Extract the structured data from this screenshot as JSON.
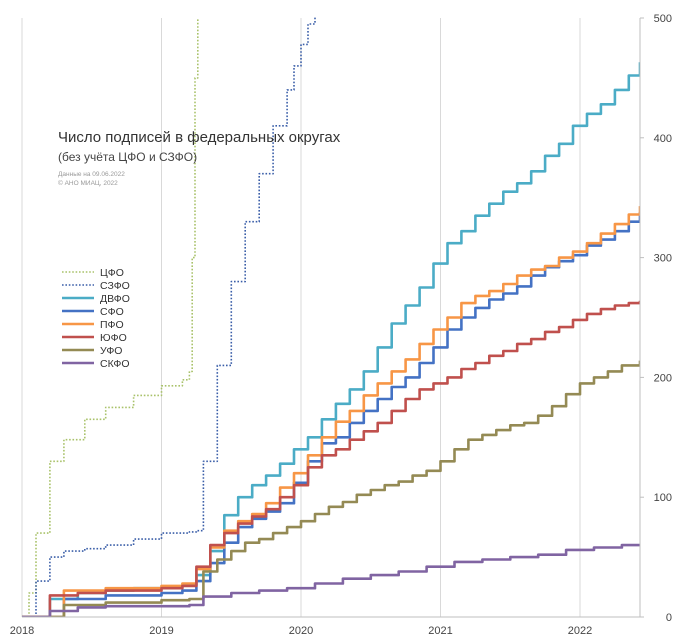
{
  "chart_data": {
    "type": "line",
    "title": "Число подписей в федеральных округах",
    "subtitle": "(без учёта ЦФО и СЗФО)",
    "notes": [
      "Данные на 09.06.2022",
      "© АНО МИАЦ, 2022"
    ],
    "xlabel": "",
    "ylabel": "",
    "xlim": [
      2018.0,
      2022.43
    ],
    "ylim": [
      0,
      500
    ],
    "x_ticks": [
      2018,
      2019,
      2020,
      2021,
      2022
    ],
    "x_tick_labels": [
      "2018",
      "2019",
      "2020",
      "2021",
      "2022"
    ],
    "y_ticks": [
      0,
      100,
      200,
      300,
      400,
      500
    ],
    "y_tick_labels": [
      "0",
      "100",
      "200",
      "300",
      "400",
      "500"
    ],
    "y_axis_side": "right",
    "grid": "vertical",
    "legend_position": "left",
    "series": [
      {
        "name": "ЦФО",
        "color": "#a9c26a",
        "style": "dotted",
        "x": [
          2018.0,
          2018.05,
          2018.1,
          2018.2,
          2018.3,
          2018.45,
          2018.6,
          2018.8,
          2019.0,
          2019.15,
          2019.2,
          2019.22,
          2019.24,
          2019.26
        ],
        "y": [
          0,
          20,
          70,
          130,
          148,
          165,
          175,
          185,
          193,
          198,
          205,
          300,
          450,
          500
        ]
      },
      {
        "name": "СЗФО",
        "color": "#3a5ea8",
        "style": "dotted",
        "x": [
          2018.0,
          2018.1,
          2018.2,
          2018.3,
          2018.45,
          2018.6,
          2018.8,
          2019.0,
          2019.1,
          2019.2,
          2019.25,
          2019.3,
          2019.4,
          2019.5,
          2019.6,
          2019.7,
          2019.8,
          2019.9,
          2019.95,
          2020.0,
          2020.05,
          2020.1
        ],
        "y": [
          0,
          30,
          50,
          55,
          57,
          60,
          65,
          70,
          70,
          71,
          72,
          130,
          210,
          280,
          330,
          370,
          410,
          440,
          460,
          478,
          495,
          510
        ]
      },
      {
        "name": "ДВФО",
        "color": "#4bacc6",
        "style": "solid",
        "x": [
          2018.0,
          2018.2,
          2018.4,
          2018.6,
          2018.8,
          2019.0,
          2019.15,
          2019.25,
          2019.35,
          2019.45,
          2019.55,
          2019.65,
          2019.75,
          2019.85,
          2019.95,
          2020.05,
          2020.15,
          2020.25,
          2020.35,
          2020.45,
          2020.55,
          2020.65,
          2020.75,
          2020.85,
          2020.95,
          2021.05,
          2021.15,
          2021.25,
          2021.35,
          2021.45,
          2021.55,
          2021.65,
          2021.75,
          2021.85,
          2021.95,
          2022.05,
          2022.15,
          2022.25,
          2022.35,
          2022.43
        ],
        "y": [
          0,
          15,
          20,
          22,
          24,
          25,
          27,
          35,
          55,
          85,
          100,
          110,
          118,
          128,
          140,
          150,
          165,
          178,
          190,
          205,
          225,
          245,
          260,
          275,
          295,
          312,
          322,
          335,
          345,
          355,
          362,
          372,
          385,
          395,
          410,
          420,
          428,
          440,
          452,
          463
        ]
      },
      {
        "name": "СФО",
        "color": "#4472c4",
        "style": "solid",
        "x": [
          2018.0,
          2018.3,
          2018.6,
          2019.0,
          2019.15,
          2019.25,
          2019.35,
          2019.45,
          2019.55,
          2019.65,
          2019.75,
          2019.85,
          2019.95,
          2020.05,
          2020.15,
          2020.25,
          2020.35,
          2020.45,
          2020.55,
          2020.65,
          2020.75,
          2020.85,
          2020.95,
          2021.05,
          2021.15,
          2021.25,
          2021.35,
          2021.45,
          2021.55,
          2021.65,
          2021.75,
          2021.85,
          2021.95,
          2022.05,
          2022.15,
          2022.25,
          2022.35,
          2022.43
        ],
        "y": [
          0,
          15,
          18,
          20,
          22,
          30,
          45,
          62,
          75,
          82,
          88,
          95,
          112,
          130,
          145,
          150,
          162,
          172,
          182,
          192,
          200,
          212,
          225,
          240,
          250,
          258,
          265,
          270,
          276,
          285,
          292,
          297,
          302,
          310,
          315,
          322,
          330,
          338
        ]
      },
      {
        "name": "ПФО",
        "color": "#f79646",
        "style": "solid",
        "x": [
          2018.0,
          2018.3,
          2018.6,
          2019.0,
          2019.15,
          2019.25,
          2019.35,
          2019.45,
          2019.55,
          2019.65,
          2019.75,
          2019.85,
          2019.95,
          2020.05,
          2020.15,
          2020.25,
          2020.35,
          2020.45,
          2020.55,
          2020.65,
          2020.75,
          2020.85,
          2020.95,
          2021.05,
          2021.15,
          2021.25,
          2021.35,
          2021.45,
          2021.55,
          2021.65,
          2021.75,
          2021.85,
          2021.95,
          2022.05,
          2022.15,
          2022.25,
          2022.35,
          2022.43
        ],
        "y": [
          0,
          22,
          24,
          26,
          28,
          40,
          58,
          72,
          80,
          86,
          95,
          108,
          120,
          135,
          150,
          163,
          172,
          185,
          195,
          205,
          215,
          228,
          240,
          250,
          262,
          268,
          272,
          278,
          285,
          290,
          293,
          300,
          305,
          312,
          320,
          328,
          336,
          343
        ]
      },
      {
        "name": "ЮФО",
        "color": "#c0504d",
        "style": "solid",
        "x": [
          2018.0,
          2018.2,
          2018.4,
          2018.6,
          2019.0,
          2019.15,
          2019.25,
          2019.35,
          2019.45,
          2019.55,
          2019.65,
          2019.75,
          2019.85,
          2019.95,
          2020.05,
          2020.15,
          2020.25,
          2020.35,
          2020.45,
          2020.55,
          2020.65,
          2020.75,
          2020.85,
          2020.95,
          2021.05,
          2021.15,
          2021.25,
          2021.35,
          2021.45,
          2021.55,
          2021.65,
          2021.75,
          2021.85,
          2021.95,
          2022.05,
          2022.15,
          2022.25,
          2022.35,
          2022.43
        ],
        "y": [
          0,
          18,
          20,
          22,
          24,
          26,
          42,
          60,
          70,
          78,
          84,
          90,
          100,
          110,
          125,
          135,
          140,
          148,
          155,
          162,
          172,
          182,
          190,
          195,
          200,
          207,
          212,
          218,
          222,
          228,
          232,
          238,
          242,
          248,
          253,
          257,
          260,
          262,
          264
        ]
      },
      {
        "name": "УФО",
        "color": "#948a54",
        "style": "solid",
        "x": [
          2018.0,
          2018.3,
          2018.6,
          2019.0,
          2019.2,
          2019.3,
          2019.4,
          2019.5,
          2019.6,
          2019.7,
          2019.8,
          2019.9,
          2020.0,
          2020.1,
          2020.2,
          2020.3,
          2020.4,
          2020.5,
          2020.6,
          2020.7,
          2020.8,
          2020.9,
          2021.0,
          2021.1,
          2021.2,
          2021.3,
          2021.4,
          2021.5,
          2021.6,
          2021.7,
          2021.8,
          2021.9,
          2022.0,
          2022.1,
          2022.2,
          2022.3,
          2022.43
        ],
        "y": [
          0,
          10,
          12,
          14,
          15,
          38,
          48,
          55,
          62,
          65,
          70,
          75,
          80,
          86,
          92,
          96,
          102,
          106,
          110,
          113,
          118,
          122,
          130,
          140,
          148,
          152,
          156,
          160,
          162,
          168,
          176,
          186,
          195,
          200,
          205,
          210,
          214
        ]
      },
      {
        "name": "СКФО",
        "color": "#8064a2",
        "style": "solid",
        "x": [
          2018.0,
          2018.2,
          2018.4,
          2018.6,
          2018.8,
          2019.0,
          2019.2,
          2019.3,
          2019.5,
          2019.7,
          2019.9,
          2020.1,
          2020.3,
          2020.5,
          2020.7,
          2020.9,
          2021.1,
          2021.3,
          2021.5,
          2021.7,
          2021.9,
          2022.1,
          2022.3,
          2022.43
        ],
        "y": [
          0,
          5,
          8,
          9,
          9,
          9,
          10,
          17,
          20,
          22,
          24,
          28,
          32,
          35,
          38,
          42,
          46,
          48,
          50,
          52,
          56,
          58,
          60,
          60
        ]
      }
    ]
  }
}
